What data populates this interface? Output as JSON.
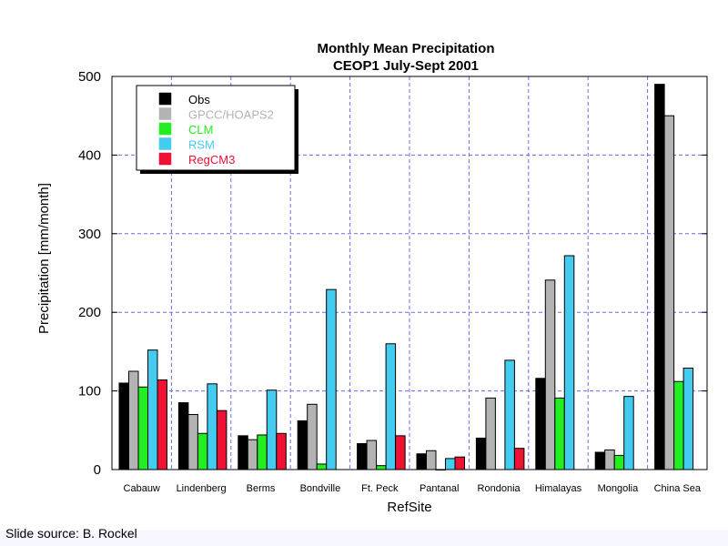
{
  "footer": {
    "source": "Slide source:  B. Rockel"
  },
  "chart_data": {
    "type": "bar",
    "title": "Monthly Mean Precipitation",
    "subtitle": "CEOP1 July-Sept 2001",
    "xlabel": "RefSite",
    "ylabel": "Precipitation [mm/month]",
    "ylim": [
      0,
      500
    ],
    "yticks": [
      0,
      100,
      200,
      300,
      400,
      500
    ],
    "grid": true,
    "legend_position": "top-left",
    "categories": [
      "Cabauw",
      "Lindenberg",
      "Berms",
      "Bondville",
      "Ft. Peck",
      "Pantanal",
      "Rondonia",
      "Himalayas",
      "Mongolia",
      "China Sea"
    ],
    "series": [
      {
        "name": "Obs",
        "color": "#000000",
        "values": [
          110,
          85,
          43,
          62,
          33,
          20,
          40,
          116,
          22,
          490
        ]
      },
      {
        "name": "GPCC/HOAPS2",
        "color": "#b3b3b3",
        "values": [
          125,
          70,
          38,
          83,
          37,
          24,
          91,
          241,
          25,
          450
        ]
      },
      {
        "name": "CLM",
        "color": "#22ee22",
        "values": [
          105,
          46,
          44,
          7,
          5,
          0,
          null,
          91,
          18,
          112
        ]
      },
      {
        "name": "RSM",
        "color": "#44ccf0",
        "values": [
          152,
          109,
          101,
          229,
          160,
          14,
          139,
          272,
          93,
          129
        ]
      },
      {
        "name": "RegCM3",
        "color": "#ee1133",
        "values": [
          114,
          75,
          46,
          null,
          43,
          16,
          27,
          null,
          null,
          null
        ]
      }
    ]
  }
}
